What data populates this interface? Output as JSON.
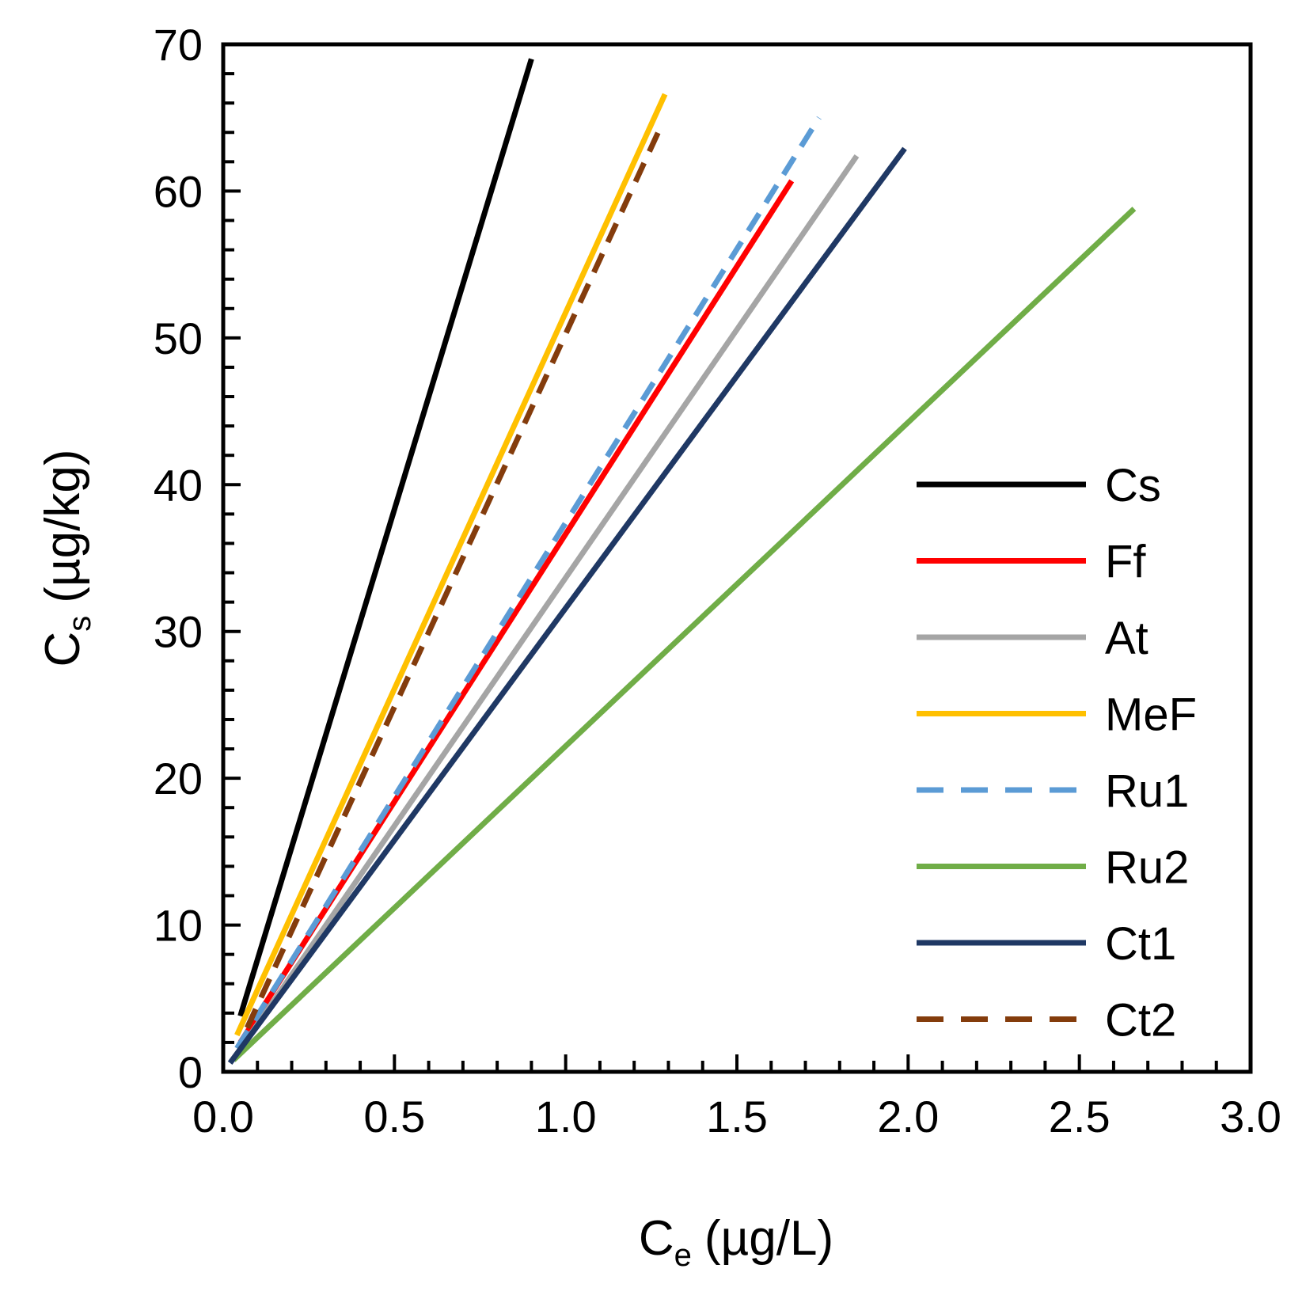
{
  "chart_data": {
    "type": "line",
    "title": "",
    "xlabel": {
      "main": "C",
      "sub": "e",
      "unit": "(µg/L)"
    },
    "ylabel": {
      "main": "C",
      "sub": "s",
      "unit": "(µg/kg)"
    },
    "xlim": [
      0,
      3
    ],
    "ylim": [
      0,
      70
    ],
    "x_ticks": [
      0.0,
      0.5,
      1.0,
      1.5,
      2.0,
      2.5,
      3.0
    ],
    "x_tick_labels": [
      "0.0",
      "0.5",
      "1.0",
      "1.5",
      "2.0",
      "2.5",
      "3.0"
    ],
    "y_ticks": [
      0,
      10,
      20,
      30,
      40,
      50,
      60,
      70
    ],
    "y_tick_labels": [
      "0",
      "10",
      "20",
      "30",
      "40",
      "50",
      "60",
      "70"
    ],
    "grid": false,
    "legend_position": "right",
    "series": [
      {
        "name": "Cs",
        "color": "#000000",
        "dash": "solid",
        "x": [
          0.05,
          0.9
        ],
        "y": [
          3.8,
          69.0
        ]
      },
      {
        "name": "Ff",
        "color": "#ff0000",
        "dash": "solid",
        "x": [
          0.05,
          1.66
        ],
        "y": [
          2.0,
          60.7
        ]
      },
      {
        "name": "At",
        "color": "#a5a5a5",
        "dash": "solid",
        "x": [
          0.04,
          1.85
        ],
        "y": [
          1.2,
          62.4
        ]
      },
      {
        "name": "MeF",
        "color": "#ffc000",
        "dash": "solid",
        "x": [
          0.04,
          1.29
        ],
        "y": [
          2.5,
          66.6
        ]
      },
      {
        "name": "Ru1",
        "color": "#5b9bd5",
        "dash": "dashed",
        "x": [
          0.04,
          1.74
        ],
        "y": [
          1.6,
          65.0
        ]
      },
      {
        "name": "Ru2",
        "color": "#70ad47",
        "dash": "solid",
        "x": [
          0.03,
          2.66
        ],
        "y": [
          0.8,
          58.8
        ]
      },
      {
        "name": "Ct1",
        "color": "#1f3864",
        "dash": "solid",
        "x": [
          0.02,
          1.99
        ],
        "y": [
          0.6,
          62.9
        ]
      },
      {
        "name": "Ct2",
        "color": "#843c0c",
        "dash": "dashed",
        "x": [
          0.07,
          1.27
        ],
        "y": [
          3.0,
          64.0
        ]
      }
    ]
  }
}
